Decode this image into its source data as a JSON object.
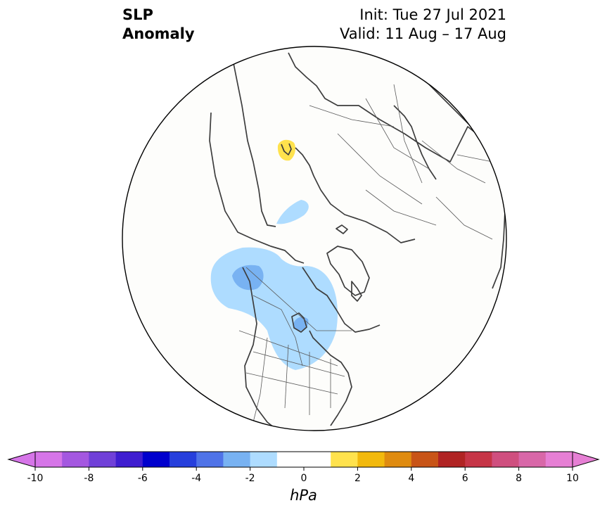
{
  "title": {
    "left_line1": "SLP",
    "left_line2": "Anomaly",
    "init": "Init: Tue 27 Jul 2021",
    "valid": "Valid: 11 Aug – 17 Aug"
  },
  "map": {
    "projection": "north-polar-stereographic",
    "anomaly_regions": [
      {
        "region": "north-scandinavia",
        "sign": "positive",
        "level_hpa": 1.5,
        "color": "#ffe24d"
      },
      {
        "region": "barents-sea",
        "sign": "negative",
        "level_hpa": -1.5,
        "color": "#aedcff"
      },
      {
        "region": "gulf-of-alaska",
        "sign": "negative",
        "level_hpa": -1.5,
        "color": "#aedcff"
      },
      {
        "region": "gulf-of-alaska-core",
        "sign": "negative",
        "level_hpa": -2.5,
        "color": "#78b2f2"
      },
      {
        "region": "central-canada",
        "sign": "negative",
        "level_hpa": -1.5,
        "color": "#aedcff"
      },
      {
        "region": "central-canada-core",
        "sign": "negative",
        "level_hpa": -2.5,
        "color": "#78b2f2"
      }
    ]
  },
  "colorbar": {
    "unit": "hPa",
    "tick_labels": [
      "-10",
      "-8",
      "-6",
      "-4",
      "-2",
      "0",
      "2",
      "4",
      "6",
      "8",
      "10"
    ],
    "colors": [
      "#d675e8",
      "#a457e0",
      "#7040d8",
      "#3f1dd0",
      "#0000cd",
      "#263fdc",
      "#4f73e8",
      "#78b2f2",
      "#aedcff",
      "#ffffff",
      "#ffffff",
      "#ffe24d",
      "#f2b90d",
      "#df8b10",
      "#c85417",
      "#b02323",
      "#c63547",
      "#cf4f7f",
      "#d867a8",
      "#e67fd4"
    ],
    "extend_low_color": "#d675e8",
    "extend_high_color": "#e67fd4"
  }
}
